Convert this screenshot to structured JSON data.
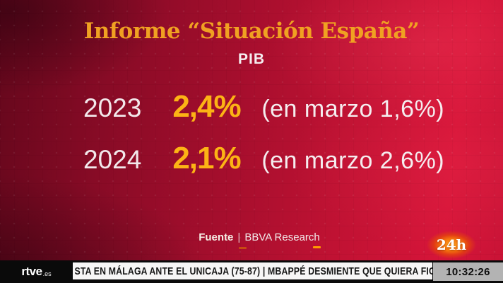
{
  "header": {
    "title": "Informe “Situación España”",
    "subtitle": "PIB"
  },
  "rows": [
    {
      "year": "2023",
      "value": "2,4%",
      "note": "(en marzo 1,6%)"
    },
    {
      "year": "2024",
      "value": "2,1%",
      "note": "(en marzo 2,6%)"
    }
  ],
  "source": {
    "label": "Fuente",
    "separator": "|",
    "value": "BBVA Research"
  },
  "channel": {
    "label": "24h"
  },
  "ticker": {
    "logo_main": "rtve",
    "logo_suffix": ".es",
    "text": "STA EN MÁLAGA ANTE EL UNICAJA (75-87)  |  MBAPPÉ DESMIENTE QUE QUIERA FIC",
    "time": "10:32:26"
  },
  "colors": {
    "accent_gold": "#f0a122",
    "value_yellow": "#fcb315",
    "text_white": "#f5eef0",
    "background_red": "#a50e2d",
    "badge_orange": "#f5760e",
    "ticker_background": "#f7f6f6",
    "ticker_text": "#161616",
    "clock_background": "#b3b3b3",
    "bar_black": "#0a0a0a"
  }
}
